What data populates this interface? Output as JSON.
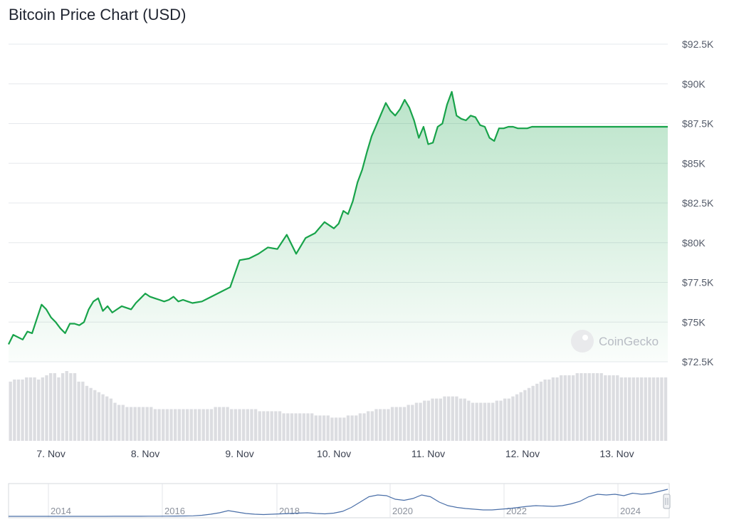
{
  "title": "Bitcoin Price Chart (USD)",
  "watermark": "CoinGecko",
  "colors": {
    "line": "#18a34a",
    "grid": "#e6e8ec",
    "volume": "#dcdde1",
    "navigator": "#4a6fa8"
  },
  "chart_data": {
    "type": "line",
    "title": "Bitcoin Price Chart (USD)",
    "ylim": [
      72500,
      92500
    ],
    "y_ticks": [
      72500,
      75000,
      77500,
      80000,
      82500,
      85000,
      87500,
      90000,
      92500
    ],
    "y_tick_labels": [
      "$72.5K",
      "$75K",
      "$77.5K",
      "$80K",
      "$82.5K",
      "$85K",
      "$87.5K",
      "$90K",
      "$92.5K"
    ],
    "x_ticks": [
      7,
      8,
      9,
      10,
      11,
      12,
      13
    ],
    "x_tick_labels": [
      "7. Nov",
      "8. Nov",
      "9. Nov",
      "10. Nov",
      "11. Nov",
      "12. Nov",
      "13. Nov"
    ],
    "xlim": [
      6.55,
      13.54
    ],
    "grid": true,
    "series": [
      {
        "x": [
          6.55,
          6.6,
          6.7,
          6.75,
          6.8,
          6.85,
          6.9,
          6.95,
          7.0,
          7.05,
          7.1,
          7.15,
          7.2,
          7.25,
          7.3,
          7.35,
          7.4,
          7.45,
          7.5,
          7.55,
          7.6,
          7.65,
          7.7,
          7.75,
          7.8,
          7.85,
          7.9,
          7.95,
          8.0,
          8.05,
          8.1,
          8.15,
          8.2,
          8.25,
          8.3,
          8.35,
          8.4,
          8.45,
          8.5,
          8.6,
          8.7,
          8.8,
          8.9,
          9.0,
          9.1,
          9.2,
          9.3,
          9.4,
          9.5,
          9.6,
          9.7,
          9.8,
          9.9,
          10.0,
          10.05,
          10.1,
          10.15,
          10.2,
          10.25,
          10.3,
          10.35,
          10.4,
          10.45,
          10.5,
          10.55,
          10.6,
          10.65,
          10.7,
          10.75,
          10.8,
          10.85,
          10.9,
          10.95,
          11.0,
          11.05,
          11.1,
          11.15,
          11.2,
          11.25,
          11.3,
          11.35,
          11.4,
          11.45,
          11.5,
          11.55,
          11.6,
          11.65,
          11.7,
          11.75,
          11.8,
          11.85,
          11.9,
          11.95,
          12.0,
          12.05,
          12.1,
          12.15,
          12.2,
          12.25,
          12.3,
          12.35,
          12.4,
          12.45,
          12.5,
          12.55,
          12.6,
          12.65,
          12.7,
          12.75,
          12.8,
          12.85,
          12.9,
          12.95,
          13.0,
          13.05,
          13.1,
          13.15,
          13.2,
          13.25,
          13.3,
          13.35,
          13.4,
          13.45,
          13.5,
          13.54
        ],
        "y": [
          73600,
          74200,
          73900,
          74400,
          74300,
          75200,
          76100,
          75800,
          75300,
          75000,
          74600,
          74300,
          74900,
          74900,
          74800,
          75000,
          75800,
          76300,
          76500,
          75700,
          76000,
          75600,
          75800,
          76000,
          75900,
          75800,
          76200,
          76500,
          76800,
          76600,
          76500,
          76400,
          76300,
          76400,
          76600,
          76300,
          76400,
          76300,
          76200,
          76300,
          76600,
          76900,
          77200,
          78900,
          79000,
          79300,
          79700,
          79600,
          80500,
          79300,
          80300,
          80600,
          81300,
          80900,
          81200,
          82000,
          81800,
          82600,
          83800,
          84600,
          85700,
          86700,
          87400,
          88100,
          88800,
          88300,
          88000,
          88400,
          89000,
          88500,
          87700,
          86600,
          87300,
          86200,
          86300,
          87300,
          87500,
          88700,
          89500,
          88000,
          87800,
          87700,
          88000,
          87900,
          87400,
          87300,
          86600,
          86400,
          87200,
          87200,
          87300,
          87300,
          87200,
          87200,
          87200,
          87300,
          87300,
          87300,
          87300,
          87300,
          87300,
          87300,
          87300,
          87300,
          87300,
          87300,
          87300,
          87300,
          87300,
          87300,
          87300,
          87300,
          87300,
          87300,
          87300,
          87300,
          87300,
          87300,
          87300,
          87300,
          87300,
          87300,
          87300,
          87300,
          87300
        ]
      }
    ],
    "volume": [
      28,
      29,
      29,
      29,
      30,
      30,
      30,
      29,
      30,
      31,
      32,
      32,
      30,
      32,
      33,
      32,
      32,
      28,
      28,
      26,
      25,
      24,
      23,
      22,
      21,
      20,
      18,
      17,
      17,
      16,
      16,
      16,
      16,
      16,
      16,
      16,
      15,
      15,
      15,
      15,
      15,
      15,
      15,
      15,
      15,
      15,
      15,
      15,
      15,
      15,
      15,
      16,
      16,
      16,
      16,
      15,
      15,
      15,
      15,
      15,
      15,
      15,
      14,
      14,
      14,
      14,
      14,
      14,
      13,
      13,
      13,
      13,
      13,
      13,
      13,
      13,
      12,
      12,
      12,
      12,
      11,
      11,
      11,
      11,
      12,
      12,
      12,
      13,
      13,
      14,
      14,
      15,
      15,
      15,
      15,
      16,
      16,
      16,
      16,
      17,
      17,
      18,
      18,
      19,
      19,
      20,
      20,
      20,
      21,
      21,
      21,
      21,
      20,
      20,
      19,
      18,
      18,
      18,
      18,
      18,
      18,
      19,
      19,
      20,
      20,
      21,
      22,
      23,
      24,
      25,
      26,
      27,
      28,
      29,
      29,
      30,
      30,
      31,
      31,
      31,
      31,
      32,
      32,
      32,
      32,
      32,
      32,
      32,
      31,
      31,
      31,
      31,
      30,
      30,
      30,
      30,
      30,
      30,
      30,
      30,
      30,
      30,
      30,
      30
    ]
  },
  "navigator": {
    "labels": [
      "2014",
      "2016",
      "2018",
      "2020",
      "2022",
      "2024"
    ],
    "values": [
      0.1,
      0.1,
      0.1,
      0.1,
      0.1,
      0.1,
      0.1,
      0.1,
      0.1,
      0.1,
      0.1,
      0.1,
      0.2,
      0.2,
      0.3,
      0.3,
      0.4,
      0.5,
      0.6,
      0.7,
      1.0,
      1.5,
      3.0,
      6.0,
      10.0,
      16.0,
      12.0,
      8.0,
      6.0,
      5.0,
      6.0,
      7.0,
      8.0,
      9.0,
      10.0,
      8.0,
      7.0,
      9.0,
      14.0,
      25.0,
      40.0,
      55.0,
      60.0,
      58.0,
      48.0,
      45.0,
      50.0,
      60.0,
      55.0,
      40.0,
      30.0,
      25.0,
      22.0,
      20.0,
      18.0,
      18.0,
      20.0,
      22.0,
      25.0,
      28.0,
      30.0,
      29.0,
      28.0,
      30.0,
      35.0,
      42.0,
      55.0,
      62.0,
      60.0,
      62.0,
      58.0,
      65.0,
      62.0,
      64.0,
      70.0,
      76.0
    ]
  }
}
